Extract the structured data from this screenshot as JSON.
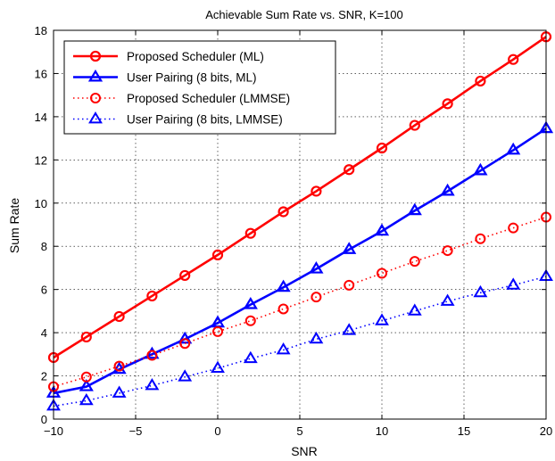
{
  "chart_data": {
    "type": "line",
    "title": "Achievable Sum Rate vs. SNR, K=100",
    "xlabel": "SNR",
    "ylabel": "Sum Rate",
    "xlim": [
      -10,
      20
    ],
    "ylim": [
      0,
      18
    ],
    "xticks": [
      -10,
      -5,
      0,
      5,
      10,
      15,
      20
    ],
    "xtick_labels": [
      "−10",
      "−5",
      "0",
      "5",
      "10",
      "15",
      "20"
    ],
    "yticks": [
      0,
      2,
      4,
      6,
      8,
      10,
      12,
      14,
      16,
      18
    ],
    "ytick_labels": [
      "0",
      "2",
      "4",
      "6",
      "8",
      "10",
      "12",
      "14",
      "16",
      "18"
    ],
    "grid": true,
    "legend_position": "top-left",
    "x": [
      -10,
      -8,
      -6,
      -4,
      -2,
      0,
      2,
      4,
      6,
      8,
      10,
      12,
      14,
      16,
      18,
      20
    ],
    "series": [
      {
        "name": "Proposed Scheduler (ML)",
        "color": "#ff0000",
        "line": "solid",
        "marker": "circle",
        "values": [
          2.85,
          3.8,
          4.75,
          5.7,
          6.65,
          7.6,
          8.6,
          9.6,
          10.55,
          11.55,
          12.55,
          13.6,
          14.6,
          15.65,
          16.65,
          17.7
        ]
      },
      {
        "name": "User Pairing (8 bits, ML)",
        "color": "#0000ff",
        "line": "solid",
        "marker": "triangle",
        "values": [
          1.2,
          1.5,
          2.3,
          3.0,
          3.7,
          4.45,
          5.3,
          6.1,
          6.95,
          7.85,
          8.7,
          9.65,
          10.55,
          11.5,
          12.45,
          13.45
        ]
      },
      {
        "name": "Proposed Scheduler (LMMSE)",
        "color": "#ff0000",
        "line": "dotted",
        "marker": "circle",
        "values": [
          1.5,
          1.95,
          2.45,
          2.95,
          3.5,
          4.05,
          4.55,
          5.1,
          5.65,
          6.2,
          6.75,
          7.3,
          7.8,
          8.35,
          8.85,
          9.35
        ]
      },
      {
        "name": "User Pairing (8 bits, LMMSE)",
        "color": "#0000ff",
        "line": "dotted",
        "marker": "triangle",
        "values": [
          0.6,
          0.85,
          1.2,
          1.55,
          1.95,
          2.35,
          2.8,
          3.2,
          3.7,
          4.1,
          4.55,
          5.0,
          5.45,
          5.85,
          6.2,
          6.6
        ]
      }
    ]
  }
}
